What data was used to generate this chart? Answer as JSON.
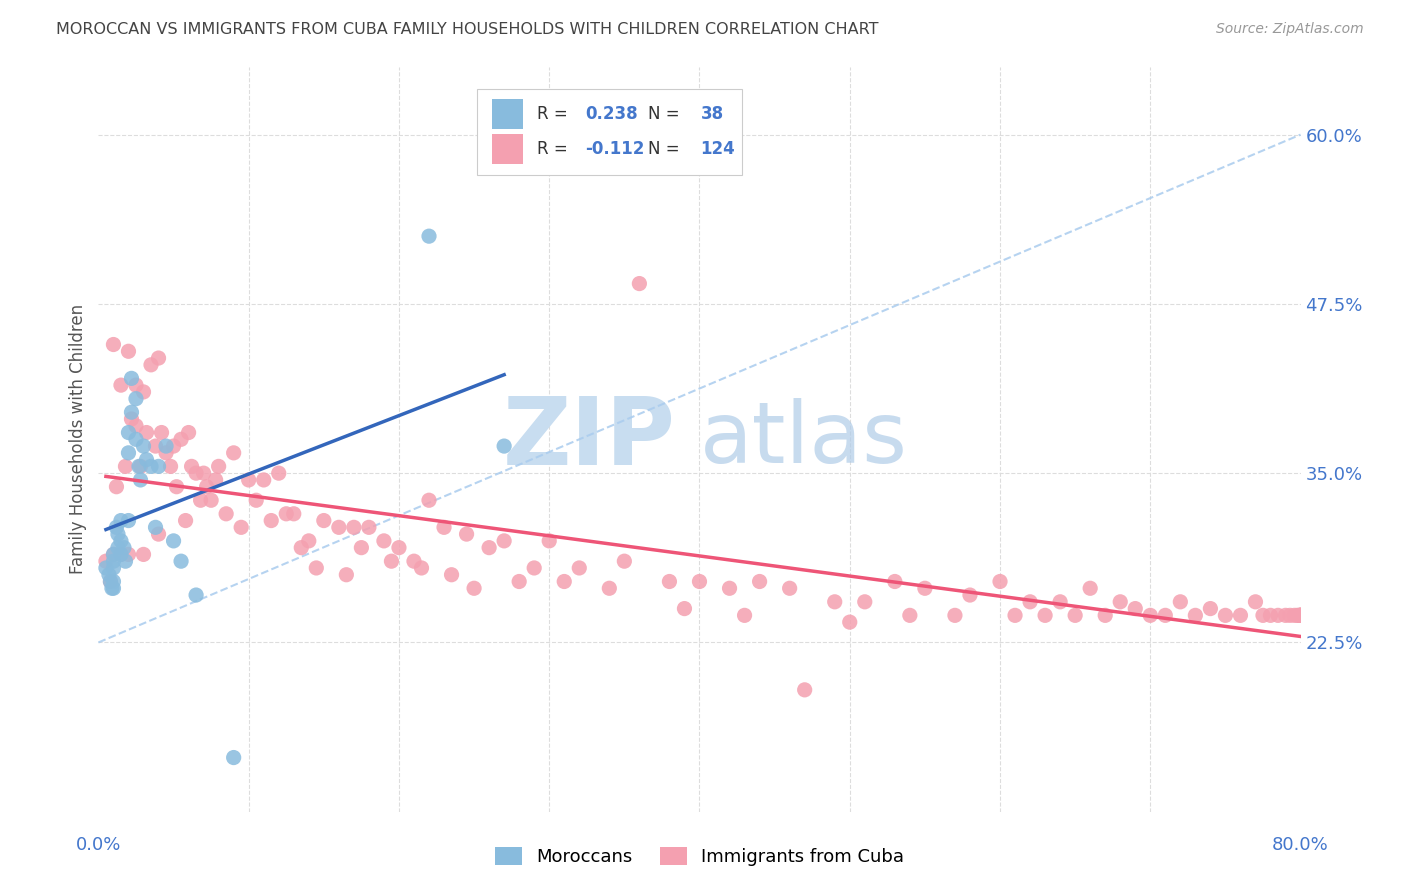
{
  "title": "MOROCCAN VS IMMIGRANTS FROM CUBA FAMILY HOUSEHOLDS WITH CHILDREN CORRELATION CHART",
  "source_text": "Source: ZipAtlas.com",
  "ylabel": "Family Households with Children",
  "ytick_values": [
    0.225,
    0.35,
    0.475,
    0.6
  ],
  "ytick_labels": [
    "22.5%",
    "35.0%",
    "47.5%",
    "60.0%"
  ],
  "xlim": [
    0.0,
    0.8
  ],
  "ylim": [
    0.1,
    0.65
  ],
  "blue_scatter_color": "#88bbdd",
  "pink_scatter_color": "#f4a0b0",
  "trendline_blue_color": "#3366bb",
  "trendline_pink_color": "#ee5577",
  "dash_line_color": "#aaccee",
  "grid_color": "#dddddd",
  "title_color": "#444444",
  "axis_value_color": "#4477cc",
  "watermark_zip_color": "#c8ddf0",
  "watermark_atlas_color": "#b0cce8",
  "source_color": "#999999",
  "ylabel_color": "#555555",
  "legend_text_color": "#333333",
  "moroccan_x": [
    0.005,
    0.007,
    0.008,
    0.009,
    0.01,
    0.01,
    0.01,
    0.01,
    0.01,
    0.012,
    0.013,
    0.013,
    0.015,
    0.015,
    0.015,
    0.017,
    0.018,
    0.02,
    0.02,
    0.02,
    0.022,
    0.022,
    0.025,
    0.025,
    0.027,
    0.028,
    0.03,
    0.032,
    0.035,
    0.038,
    0.04,
    0.045,
    0.05,
    0.055,
    0.065,
    0.09,
    0.22,
    0.27
  ],
  "moroccan_y": [
    0.28,
    0.275,
    0.27,
    0.265,
    0.29,
    0.285,
    0.28,
    0.27,
    0.265,
    0.31,
    0.305,
    0.295,
    0.315,
    0.3,
    0.29,
    0.295,
    0.285,
    0.38,
    0.365,
    0.315,
    0.42,
    0.395,
    0.405,
    0.375,
    0.355,
    0.345,
    0.37,
    0.36,
    0.355,
    0.31,
    0.355,
    0.37,
    0.3,
    0.285,
    0.26,
    0.14,
    0.525,
    0.37
  ],
  "cuba_x": [
    0.005,
    0.008,
    0.01,
    0.01,
    0.012,
    0.015,
    0.015,
    0.018,
    0.02,
    0.02,
    0.022,
    0.025,
    0.025,
    0.028,
    0.03,
    0.03,
    0.032,
    0.035,
    0.038,
    0.04,
    0.04,
    0.042,
    0.045,
    0.048,
    0.05,
    0.052,
    0.055,
    0.058,
    0.06,
    0.062,
    0.065,
    0.068,
    0.07,
    0.072,
    0.075,
    0.078,
    0.08,
    0.085,
    0.09,
    0.095,
    0.1,
    0.105,
    0.11,
    0.115,
    0.12,
    0.125,
    0.13,
    0.135,
    0.14,
    0.145,
    0.15,
    0.16,
    0.165,
    0.17,
    0.175,
    0.18,
    0.19,
    0.195,
    0.2,
    0.21,
    0.215,
    0.22,
    0.23,
    0.235,
    0.245,
    0.25,
    0.26,
    0.27,
    0.28,
    0.29,
    0.3,
    0.31,
    0.32,
    0.34,
    0.35,
    0.36,
    0.38,
    0.39,
    0.4,
    0.42,
    0.43,
    0.44,
    0.46,
    0.47,
    0.49,
    0.5,
    0.51,
    0.53,
    0.54,
    0.55,
    0.57,
    0.58,
    0.6,
    0.61,
    0.62,
    0.63,
    0.64,
    0.65,
    0.66,
    0.67,
    0.68,
    0.69,
    0.7,
    0.71,
    0.72,
    0.73,
    0.74,
    0.75,
    0.76,
    0.77,
    0.775,
    0.78,
    0.785,
    0.79,
    0.793,
    0.796,
    0.798,
    0.799,
    0.8,
    0.8,
    0.8,
    0.8,
    0.8,
    0.8
  ],
  "cuba_y": [
    0.285,
    0.27,
    0.445,
    0.29,
    0.34,
    0.415,
    0.29,
    0.355,
    0.44,
    0.29,
    0.39,
    0.415,
    0.385,
    0.355,
    0.41,
    0.29,
    0.38,
    0.43,
    0.37,
    0.435,
    0.305,
    0.38,
    0.365,
    0.355,
    0.37,
    0.34,
    0.375,
    0.315,
    0.38,
    0.355,
    0.35,
    0.33,
    0.35,
    0.34,
    0.33,
    0.345,
    0.355,
    0.32,
    0.365,
    0.31,
    0.345,
    0.33,
    0.345,
    0.315,
    0.35,
    0.32,
    0.32,
    0.295,
    0.3,
    0.28,
    0.315,
    0.31,
    0.275,
    0.31,
    0.295,
    0.31,
    0.3,
    0.285,
    0.295,
    0.285,
    0.28,
    0.33,
    0.31,
    0.275,
    0.305,
    0.265,
    0.295,
    0.3,
    0.27,
    0.28,
    0.3,
    0.27,
    0.28,
    0.265,
    0.285,
    0.49,
    0.27,
    0.25,
    0.27,
    0.265,
    0.245,
    0.27,
    0.265,
    0.19,
    0.255,
    0.24,
    0.255,
    0.27,
    0.245,
    0.265,
    0.245,
    0.26,
    0.27,
    0.245,
    0.255,
    0.245,
    0.255,
    0.245,
    0.265,
    0.245,
    0.255,
    0.25,
    0.245,
    0.245,
    0.255,
    0.245,
    0.25,
    0.245,
    0.245,
    0.255,
    0.245,
    0.245,
    0.245,
    0.245,
    0.245,
    0.245,
    0.245,
    0.245,
    0.245,
    0.245,
    0.245,
    0.245,
    0.245,
    0.245
  ]
}
